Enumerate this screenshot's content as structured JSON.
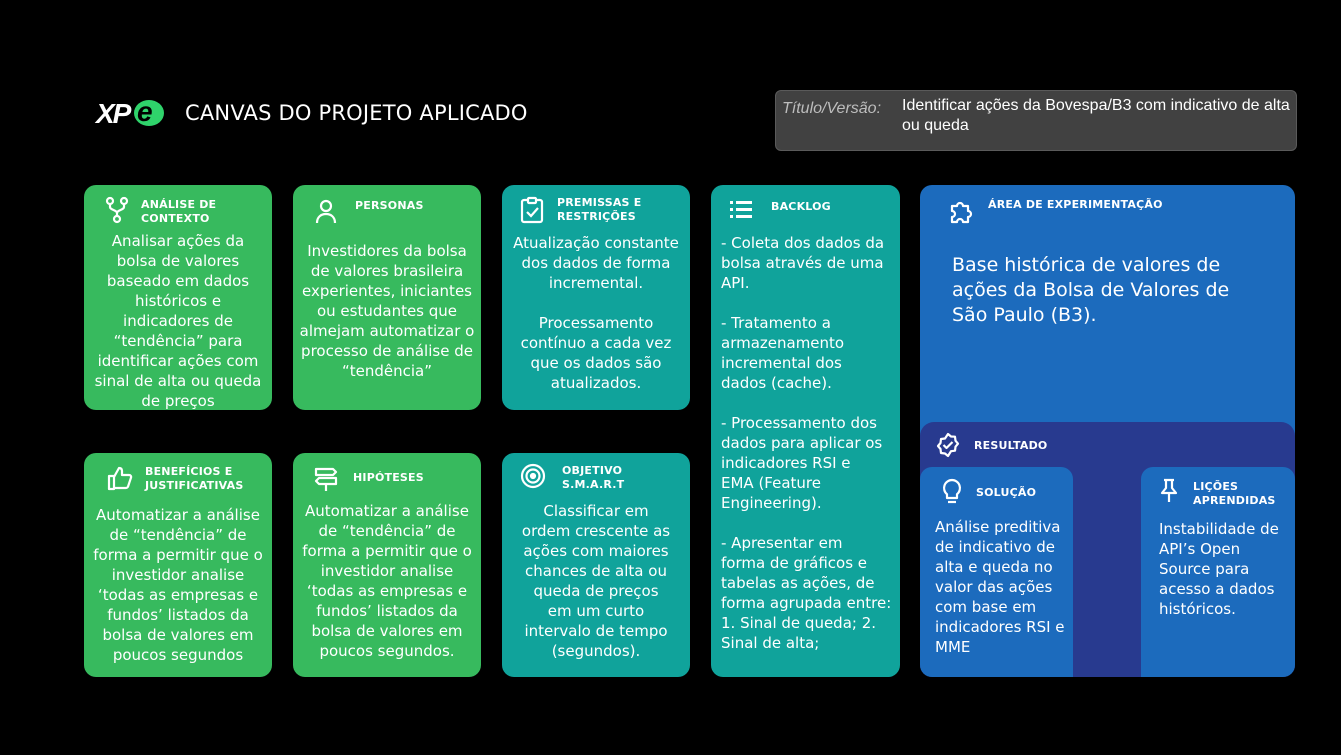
{
  "header": {
    "logo": "XPe",
    "title": "CANVAS DO PROJETO APLICADO",
    "version_label": "Título/Versão:",
    "version_value": "Identificar ações da Bovespa/B3 com indicativo de alta ou queda"
  },
  "cards": {
    "analise": {
      "title": "ANÁLISE DE\nCONTEXTO",
      "icon": "fork-icon",
      "text": "Analisar ações da\nbolsa de valores\nbaseado em dados\nhistóricos e\nindicadores de\n“tendência” para\nidentificar ações com\nsinal de alta ou queda\nde preços"
    },
    "personas": {
      "title": "PERSONAS",
      "icon": "person-icon",
      "text": "Investidores da bolsa\nde valores brasileira\nexperientes, iniciantes\nou estudantes que\nalmejam automatizar o\nprocesso de análise de\n“tendência”"
    },
    "premissas": {
      "title": "PREMISSAS E\nRESTRIÇÕES",
      "icon": "clipboard-check-icon",
      "text": "Atualização constante\ndos dados de forma\nincremental.\n\nProcessamento\ncontínuo a cada vez\nque os dados são\natualizados."
    },
    "backlog": {
      "title": "BACKLOG",
      "icon": "list-icon",
      "text": "- Coleta dos dados da\nbolsa através de uma\nAPI.\n\n- Tratamento a\narmazenamento\nincremental dos\ndados (cache).\n\n- Processamento dos\ndados para aplicar os\nindicadores RSI e\nEMA (Feature\nEngineering).\n\n- Apresentar em\nforma de gráficos e\ntabelas as ações, de\nforma agrupada entre:\n1. Sinal de queda; 2.\nSinal de alta;"
    },
    "beneficios": {
      "title": "BENEFÍCIOS E\nJUSTIFICATIVAS",
      "icon": "thumbs-up-icon",
      "text": "Automatizar a análise\nde “tendência” de\nforma a permitir que o\ninvestidor analise\n‘todas as empresas e\nfundos’ listados  da\nbolsa de valores em\npoucos segundos"
    },
    "hipoteses": {
      "title": "HIPÓTESES",
      "icon": "signpost-icon",
      "text": "Automatizar a análise\nde “tendência” de\nforma a permitir que o\ninvestidor analise\n‘todas as empresas e\nfundos’ listados  da\nbolsa de valores em\npoucos segundos."
    },
    "objetivo": {
      "title": "OBJETIVO\nS.M.A.R.T",
      "icon": "target-icon",
      "text": "Classificar em\nordem crescente as\nações com maiores\nchances de alta ou\nqueda de preços\nem um curto\nintervalo de tempo\n(segundos)."
    },
    "experimentacao": {
      "title": "ÁREA DE EXPERIMENTAÇÃO",
      "icon": "puzzle-icon",
      "text": "Base histórica de valores de ações da Bolsa de Valores de São Paulo (B3)."
    },
    "resultado": {
      "title": "RESULTADO",
      "icon": "badge-check-icon"
    },
    "solucao": {
      "title": "SOLUÇÃO",
      "icon": "lightbulb-icon",
      "text": "Análise preditiva\nde indicativo de\nalta e queda no\nvalor das ações\ncom base em\nindicadores RSI e\nMME"
    },
    "licoes": {
      "title": "LIÇÕES\nAPRENDIDAS",
      "icon": "pin-icon",
      "text": "Instabilidade de\nAPI’s Open\nSource para\nacesso a dados\nhistóricos."
    }
  },
  "colors": {
    "green": "#37ba5e",
    "teal": "#10a39b",
    "blue": "#1c6bbd",
    "navy": "#283a8f"
  }
}
